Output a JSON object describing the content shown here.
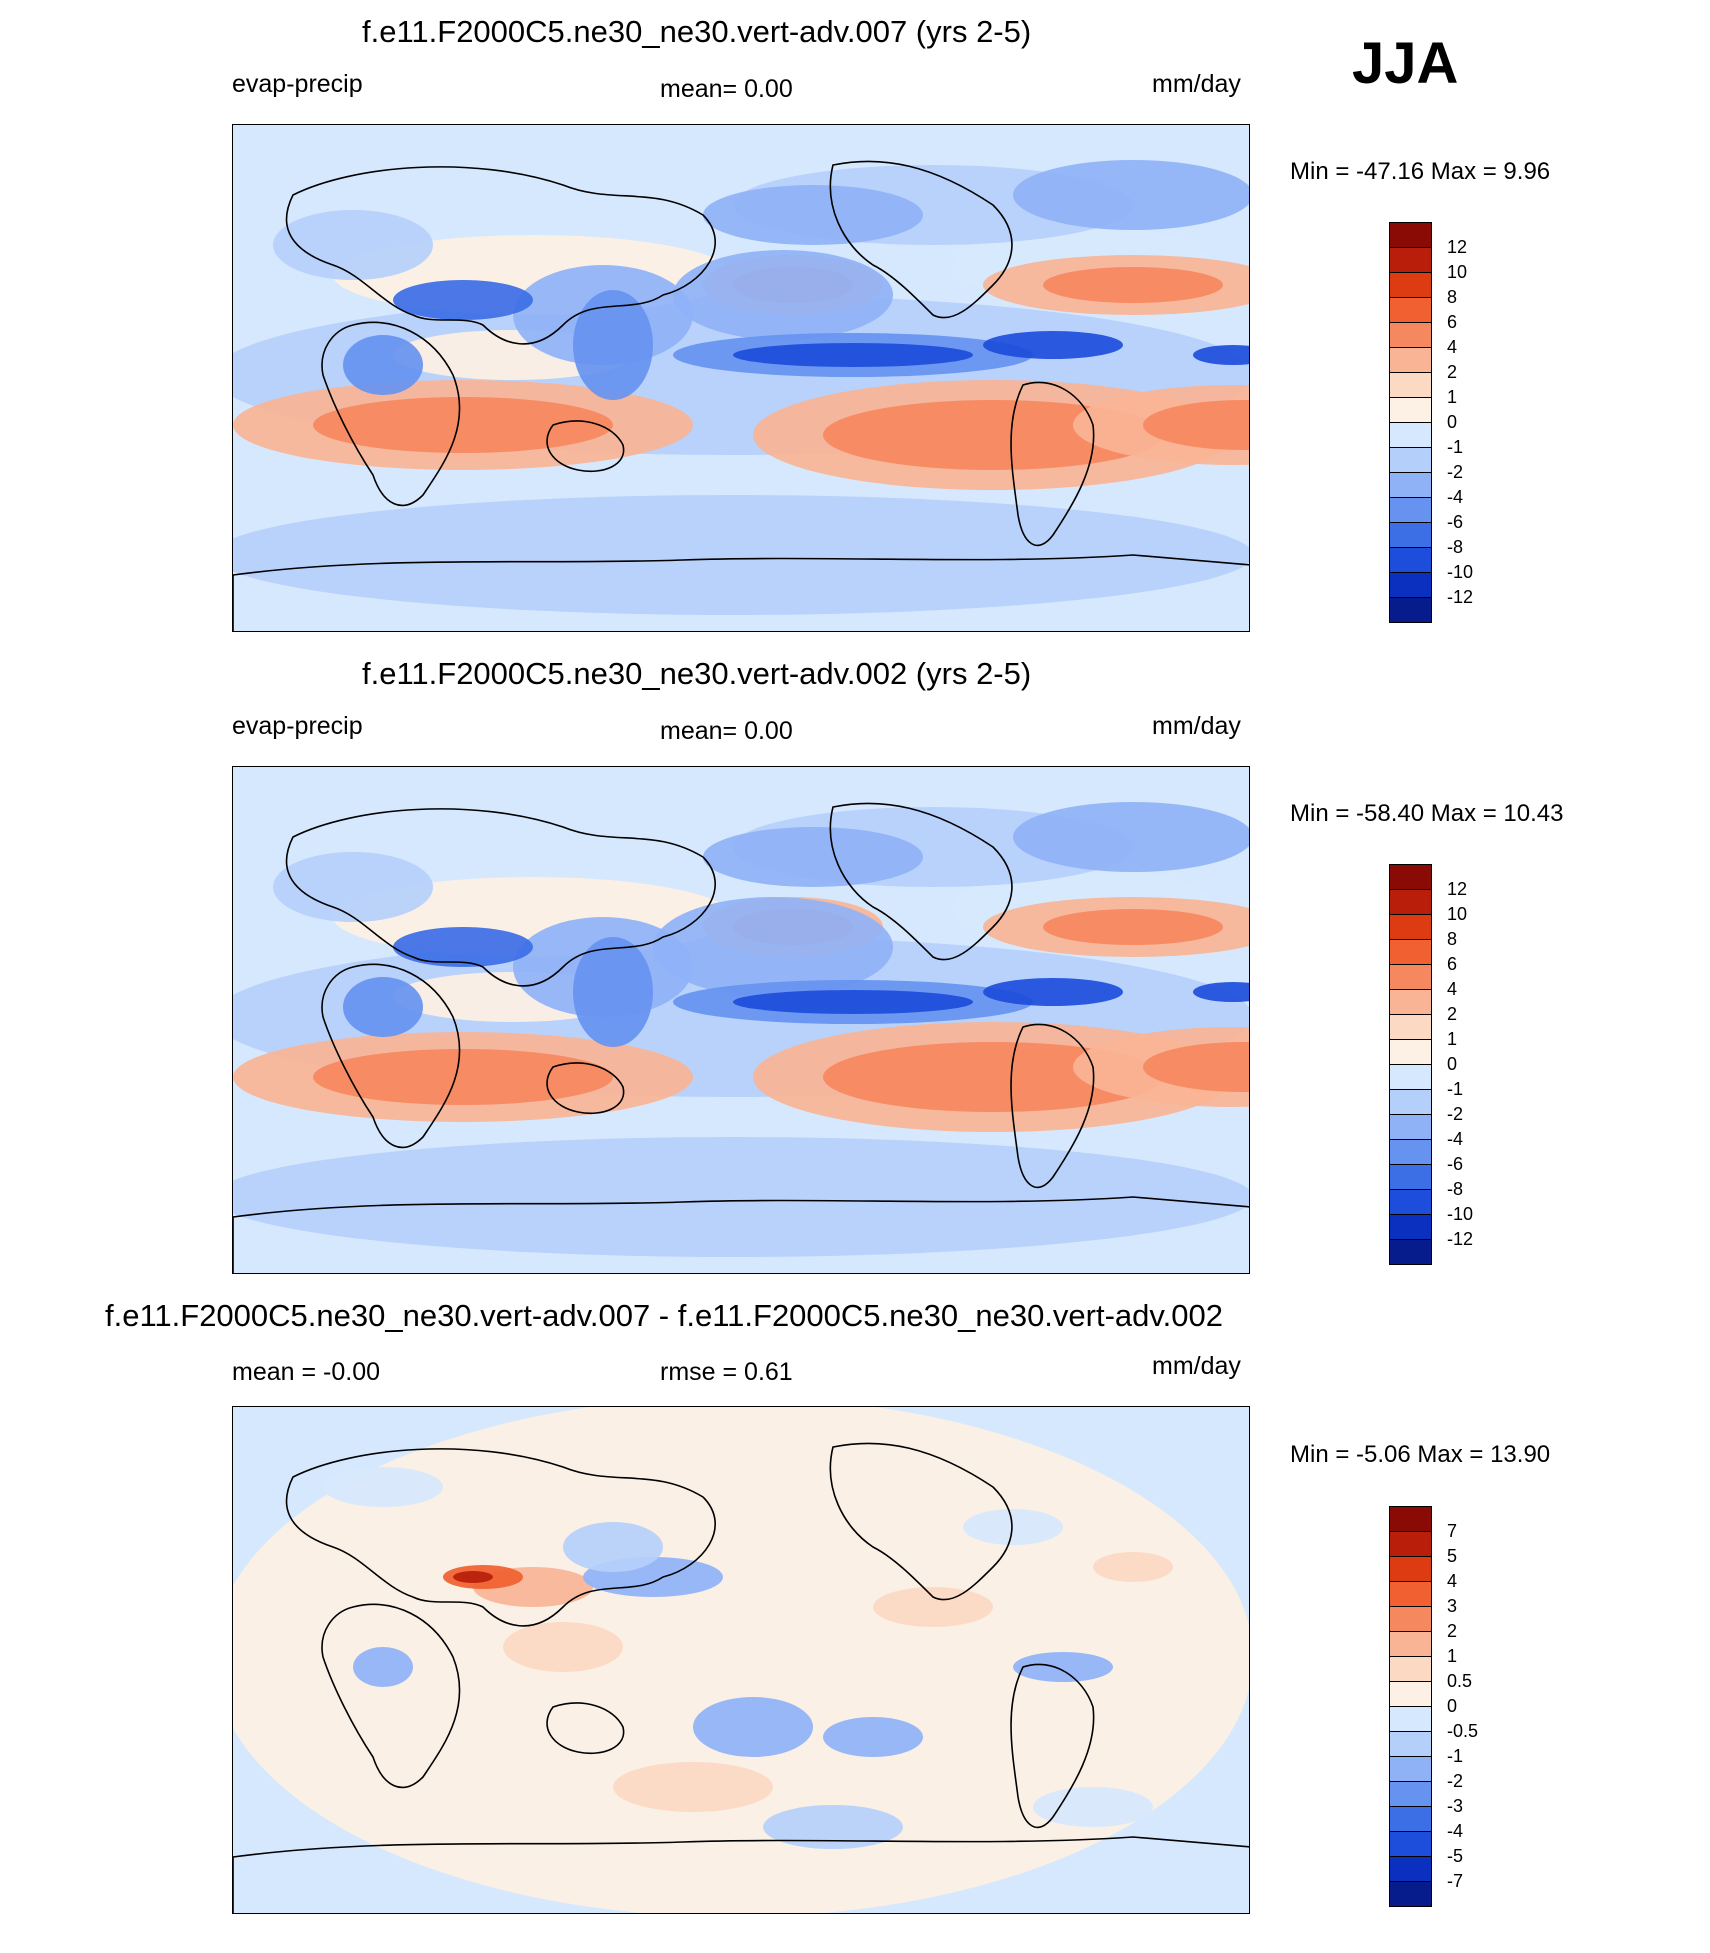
{
  "season": "JJA",
  "chart_data": [
    {
      "type": "heatmap",
      "title": "f.e11.F2000C5.ne30_ne30.vert-adv.007 (yrs 2-5)",
      "left_label": "evap-precip",
      "center_label": "mean=   0.00",
      "units": "mm/day",
      "minmax": "Min = -47.16 Max =   9.96",
      "colorbar_levels": [
        "12",
        "10",
        "8",
        "6",
        "4",
        "2",
        "1",
        "0",
        "-1",
        "-2",
        "-4",
        "-6",
        "-8",
        "-10",
        "-12"
      ],
      "colorbar_colors": [
        "#8a0a06",
        "#b81e0a",
        "#dd3b12",
        "#f06030",
        "#f68860",
        "#f9b496",
        "#fcd9c3",
        "#fdf0e4",
        "#d6e8fd",
        "#b5cffb",
        "#8fb2f7",
        "#6693f0",
        "#3c6ee6",
        "#1d4ddb",
        "#0b2fbf",
        "#061b8c"
      ]
    },
    {
      "type": "heatmap",
      "title": "f.e11.F2000C5.ne30_ne30.vert-adv.002 (yrs 2-5)",
      "left_label": "evap-precip",
      "center_label": "mean=   0.00",
      "units": "mm/day",
      "minmax": "Min = -58.40 Max =  10.43",
      "colorbar_levels": [
        "12",
        "10",
        "8",
        "6",
        "4",
        "2",
        "1",
        "0",
        "-1",
        "-2",
        "-4",
        "-6",
        "-8",
        "-10",
        "-12"
      ],
      "colorbar_colors": [
        "#8a0a06",
        "#b81e0a",
        "#dd3b12",
        "#f06030",
        "#f68860",
        "#f9b496",
        "#fcd9c3",
        "#fdf0e4",
        "#d6e8fd",
        "#b5cffb",
        "#8fb2f7",
        "#6693f0",
        "#3c6ee6",
        "#1d4ddb",
        "#0b2fbf",
        "#061b8c"
      ]
    },
    {
      "type": "heatmap",
      "title": "f.e11.F2000C5.ne30_ne30.vert-adv.007 - f.e11.F2000C5.ne30_ne30.vert-adv.002",
      "left_label": "mean =  -0.00",
      "center_label": "rmse =   0.61",
      "units": "mm/day",
      "minmax": "Min =  -5.06 Max =  13.90",
      "colorbar_levels": [
        "7",
        "5",
        "4",
        "3",
        "2",
        "1",
        "0.5",
        "0",
        "-0.5",
        "-1",
        "-2",
        "-3",
        "-4",
        "-5",
        "-7"
      ],
      "colorbar_colors": [
        "#8a0a06",
        "#b81e0a",
        "#dd3b12",
        "#f06030",
        "#f68860",
        "#f9b496",
        "#fcd9c3",
        "#fdf0e4",
        "#d6e8fd",
        "#b5cffb",
        "#8fb2f7",
        "#6693f0",
        "#3c6ee6",
        "#1d4ddb",
        "#0b2fbf",
        "#061b8c"
      ]
    }
  ]
}
